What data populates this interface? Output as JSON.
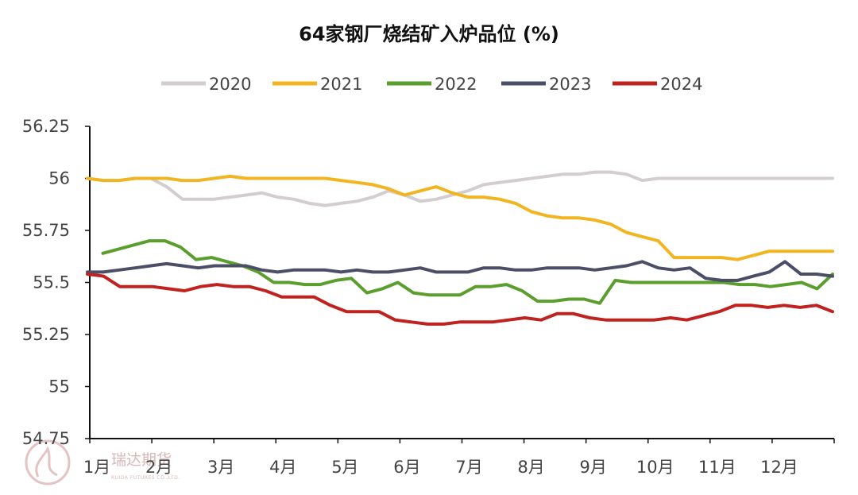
{
  "chart_data": {
    "type": "line",
    "title": "64家钢厂烧结矿入炉品位 (%)",
    "xlabel": "",
    "ylabel": "",
    "ylim": [
      54.75,
      56.25
    ],
    "yticks": [
      "56.25",
      "56",
      "55.75",
      "55.5",
      "55.25",
      "55",
      "54.75"
    ],
    "x_tick_labels": [
      "1月",
      "2月",
      "3月",
      "4月",
      "5月",
      "6月",
      "7月",
      "8月",
      "9月",
      "10月",
      "11月",
      "12月"
    ],
    "legend_position": "top",
    "grid": false,
    "series": [
      {
        "name": "2020",
        "color": "#d4cdd0",
        "values": [
          56.0,
          55.99,
          55.99,
          56.0,
          56.0,
          55.96,
          55.9,
          55.9,
          55.9,
          55.91,
          55.92,
          55.93,
          55.91,
          55.9,
          55.88,
          55.87,
          55.88,
          55.89,
          55.91,
          55.94,
          55.92,
          55.89,
          55.9,
          55.92,
          55.94,
          55.97,
          55.98,
          55.99,
          56.0,
          56.01,
          56.02,
          56.02,
          56.03,
          56.03,
          56.02,
          55.99,
          56.0,
          56.0,
          56.0,
          56.0,
          56.0,
          56.0,
          56.0,
          56.0,
          56.0,
          56.0,
          56.0,
          56.0
        ]
      },
      {
        "name": "2021",
        "color": "#f0b521",
        "values": [
          56.0,
          55.99,
          55.99,
          56.0,
          56.0,
          56.0,
          55.99,
          55.99,
          56.0,
          56.01,
          56.0,
          56.0,
          56.0,
          56.0,
          56.0,
          56.0,
          55.99,
          55.98,
          55.97,
          55.95,
          55.92,
          55.94,
          55.96,
          55.93,
          55.91,
          55.91,
          55.9,
          55.88,
          55.84,
          55.82,
          55.81,
          55.81,
          55.8,
          55.78,
          55.74,
          55.72,
          55.7,
          55.62,
          55.62,
          55.62,
          55.62,
          55.61,
          55.63,
          55.65,
          55.65,
          55.65,
          55.65,
          55.65
        ]
      },
      {
        "name": "2022",
        "color": "#5a9e2d",
        "values": [
          55.64,
          55.66,
          55.68,
          55.7,
          55.7,
          55.67,
          55.61,
          55.62,
          55.6,
          55.58,
          55.55,
          55.5,
          55.5,
          55.49,
          55.49,
          55.51,
          55.52,
          55.45,
          55.47,
          55.5,
          55.45,
          55.44,
          55.44,
          55.44,
          55.48,
          55.48,
          55.49,
          55.46,
          55.41,
          55.41,
          55.42,
          55.42,
          55.4,
          55.51,
          55.5,
          55.5,
          55.5,
          55.5,
          55.5,
          55.5,
          55.5,
          55.49,
          55.49,
          55.48,
          55.49,
          55.5,
          55.47,
          55.54
        ]
      },
      {
        "name": "2023",
        "color": "#4a4e66",
        "values": [
          55.55,
          55.55,
          55.56,
          55.57,
          55.58,
          55.59,
          55.58,
          55.57,
          55.58,
          55.58,
          55.58,
          55.56,
          55.55,
          55.56,
          55.56,
          55.56,
          55.55,
          55.56,
          55.55,
          55.55,
          55.56,
          55.57,
          55.55,
          55.55,
          55.55,
          55.57,
          55.57,
          55.56,
          55.56,
          55.57,
          55.57,
          55.57,
          55.56,
          55.57,
          55.58,
          55.6,
          55.57,
          55.56,
          55.57,
          55.52,
          55.51,
          55.51,
          55.53,
          55.55,
          55.6,
          55.54,
          55.54,
          55.53
        ]
      },
      {
        "name": "2024",
        "color": "#c0221f",
        "values": [
          55.54,
          55.53,
          55.48,
          55.48,
          55.48,
          55.47,
          55.46,
          55.48,
          55.49,
          55.48,
          55.48,
          55.46,
          55.43,
          55.43,
          55.43,
          55.39,
          55.36,
          55.36,
          55.36,
          55.32,
          55.31,
          55.3,
          55.3,
          55.31,
          55.31,
          55.31,
          55.32,
          55.33,
          55.32,
          55.35,
          55.35,
          55.33,
          55.32,
          55.32,
          55.32,
          55.32,
          55.33,
          55.32,
          55.34,
          55.36,
          55.39,
          55.39,
          55.38,
          55.39,
          55.38,
          55.39,
          55.36
        ]
      }
    ]
  },
  "watermark": {
    "text": "瑞达期货",
    "subtext": "RUIDA FUTURES CO.,LTD."
  }
}
